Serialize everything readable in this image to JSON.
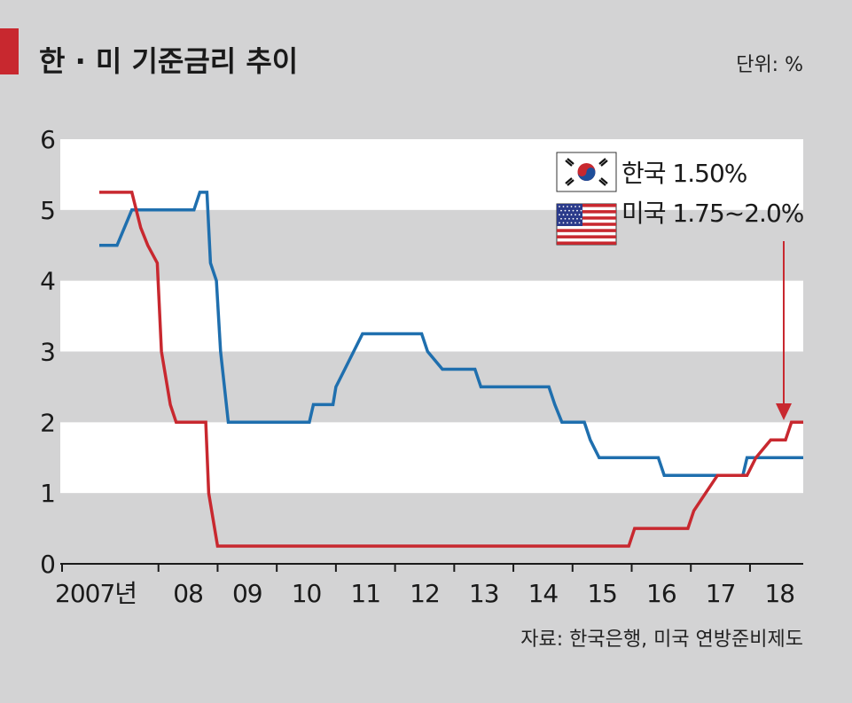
{
  "title": "한 · 미 기준금리 추이",
  "unit": "단위: %",
  "source": "자료: 한국은행, 미국 연방준비제도",
  "colors": {
    "korea": "#1f6fae",
    "us": "#c8282f",
    "accent": "#c8282f",
    "band_light": "#ffffff",
    "band_dark": "#d3d3d4"
  },
  "legend": {
    "korea": {
      "label": "한국 1.50%",
      "icon": "korea-flag-icon"
    },
    "us": {
      "label": "미국 1.75~2.0%",
      "icon": "us-flag-icon"
    }
  },
  "chart_data": {
    "type": "line",
    "title": "한 · 미 기준금리 추이",
    "unit": "%",
    "ylim": [
      0,
      6
    ],
    "yticks": [
      "0",
      "1",
      "2",
      "3",
      "4",
      "5",
      "6"
    ],
    "xlim": [
      2007.0,
      2018.9
    ],
    "xtick_labels": [
      "2007년",
      "08",
      "09",
      "10",
      "11",
      "12",
      "13",
      "14",
      "15",
      "16",
      "17",
      "18"
    ],
    "xtick_years": [
      2007,
      2008,
      2009,
      2010,
      2011,
      2012,
      2013,
      2014,
      2015,
      2016,
      2017,
      2018
    ],
    "series": [
      {
        "name": "한국",
        "color": "#1f6fae",
        "points": [
          [
            2007.0,
            4.5
          ],
          [
            2007.3,
            4.5
          ],
          [
            2007.55,
            5.0
          ],
          [
            2008.6,
            5.0
          ],
          [
            2008.7,
            5.25
          ],
          [
            2008.82,
            5.25
          ],
          [
            2008.88,
            4.25
          ],
          [
            2008.98,
            4.0
          ],
          [
            2009.05,
            3.0
          ],
          [
            2009.18,
            2.0
          ],
          [
            2010.55,
            2.0
          ],
          [
            2010.62,
            2.25
          ],
          [
            2010.95,
            2.25
          ],
          [
            2011.0,
            2.5
          ],
          [
            2011.15,
            2.75
          ],
          [
            2011.3,
            3.0
          ],
          [
            2011.45,
            3.25
          ],
          [
            2012.45,
            3.25
          ],
          [
            2012.55,
            3.0
          ],
          [
            2012.8,
            2.75
          ],
          [
            2013.35,
            2.75
          ],
          [
            2013.45,
            2.5
          ],
          [
            2014.6,
            2.5
          ],
          [
            2014.7,
            2.25
          ],
          [
            2014.82,
            2.0
          ],
          [
            2015.2,
            2.0
          ],
          [
            2015.3,
            1.75
          ],
          [
            2015.45,
            1.5
          ],
          [
            2016.45,
            1.5
          ],
          [
            2016.55,
            1.25
          ],
          [
            2017.88,
            1.25
          ],
          [
            2017.95,
            1.5
          ],
          [
            2018.9,
            1.5
          ]
        ]
      },
      {
        "name": "미국",
        "color": "#c8282f",
        "points": [
          [
            2007.0,
            5.25
          ],
          [
            2007.55,
            5.25
          ],
          [
            2007.7,
            4.75
          ],
          [
            2007.82,
            4.5
          ],
          [
            2007.98,
            4.25
          ],
          [
            2008.05,
            3.0
          ],
          [
            2008.2,
            2.25
          ],
          [
            2008.3,
            2.0
          ],
          [
            2008.8,
            2.0
          ],
          [
            2008.85,
            1.0
          ],
          [
            2009.0,
            0.25
          ],
          [
            2015.95,
            0.25
          ],
          [
            2016.05,
            0.5
          ],
          [
            2016.95,
            0.5
          ],
          [
            2017.05,
            0.75
          ],
          [
            2017.25,
            1.0
          ],
          [
            2017.45,
            1.25
          ],
          [
            2017.95,
            1.25
          ],
          [
            2018.1,
            1.5
          ],
          [
            2018.35,
            1.75
          ],
          [
            2018.6,
            1.75
          ],
          [
            2018.7,
            2.0
          ],
          [
            2018.9,
            2.0
          ]
        ]
      }
    ]
  }
}
